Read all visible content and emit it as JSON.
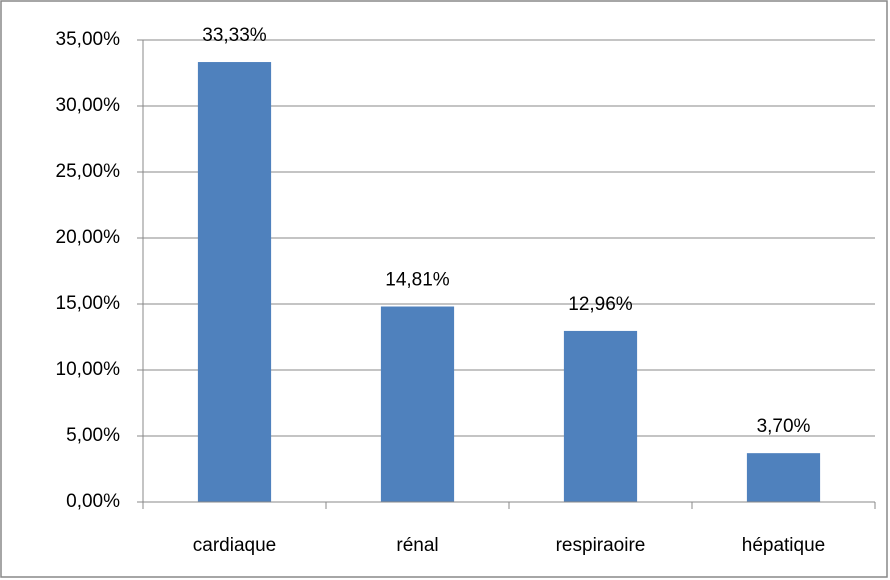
{
  "chart_data": {
    "type": "bar",
    "categories": [
      "cardiaque",
      "rénal",
      "respiraoire",
      "hépatique"
    ],
    "values": [
      33.33,
      14.81,
      12.96,
      3.7
    ],
    "value_labels": [
      "33,33%",
      "14,81%",
      "12,96%",
      "3,70%"
    ],
    "color": "#4f81bd",
    "ylim": [
      0,
      35
    ],
    "yticks": [
      {
        "value": 0,
        "label": "0,00%"
      },
      {
        "value": 5,
        "label": "5,00%"
      },
      {
        "value": 10,
        "label": "10,00%"
      },
      {
        "value": 15,
        "label": "15,00%"
      },
      {
        "value": 20,
        "label": "20,00%"
      },
      {
        "value": 25,
        "label": "25,00%"
      },
      {
        "value": 30,
        "label": "30,00%"
      },
      {
        "value": 35,
        "label": "35,00%"
      }
    ],
    "grid": true
  }
}
